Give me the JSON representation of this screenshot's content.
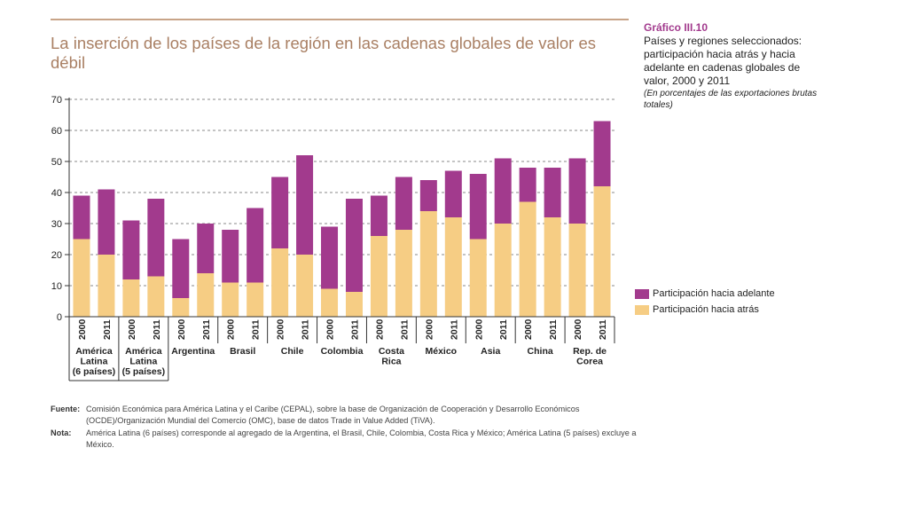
{
  "header": {
    "headline": "La inserción de los países de la región en las cadenas globales de valor es débil"
  },
  "side": {
    "label": "Gráfico III.10",
    "description": "Países y regiones seleccionados: participación hacia atrás y hacia adelante en cadenas globales de valor, 2000 y 2011",
    "note": "(En porcentajes de las exportaciones brutas totales)"
  },
  "colors": {
    "forward": "#a23a8d",
    "backward": "#f6cd84",
    "headline": "#a97f63",
    "grid": "#888888"
  },
  "legend": {
    "forward": "Participación hacia adelante",
    "backward": "Participación hacia atrás"
  },
  "footer": {
    "source_key": "Fuente:",
    "source_text": "Comisión Económica para América Latina y el Caribe (CEPAL), sobre la base de Organización de Cooperación y Desarrollo Económicos (OCDE)/Organización Mundial del Comercio (OMC), base de datos Trade in Value Added (TiVA).",
    "note_key": "Nota:",
    "note_text": "América Latina (6 países) corresponde al agregado de la Argentina, el Brasil, Chile, Colombia, Costa Rica y México; América Latina (5 países) excluye a México."
  },
  "chart_data": {
    "type": "bar",
    "stacked": true,
    "ylim": [
      0,
      70
    ],
    "yticks": [
      0,
      10,
      20,
      30,
      40,
      50,
      60,
      70
    ],
    "grid": "dashed horizontal",
    "legend_position": "right",
    "years": [
      "2000",
      "2011"
    ],
    "groups": [
      {
        "label_lines": [
          "América",
          "Latina",
          "(6 países)"
        ]
      },
      {
        "label_lines": [
          "América",
          "Latina",
          "(5 países)"
        ]
      },
      {
        "label_lines": [
          "Argentina"
        ]
      },
      {
        "label_lines": [
          "Brasil"
        ]
      },
      {
        "label_lines": [
          "Chile"
        ]
      },
      {
        "label_lines": [
          "Colombia"
        ]
      },
      {
        "label_lines": [
          "Costa",
          "Rica"
        ]
      },
      {
        "label_lines": [
          "México"
        ]
      },
      {
        "label_lines": [
          "Asia"
        ]
      },
      {
        "label_lines": [
          "China"
        ]
      },
      {
        "label_lines": [
          "Rep. de",
          "Corea"
        ]
      }
    ],
    "series": [
      {
        "name": "Participación hacia atrás",
        "values": [
          25,
          20,
          12,
          13,
          6,
          14,
          11,
          11,
          22,
          20,
          9,
          8,
          26,
          28,
          34,
          32,
          25,
          30,
          37,
          32,
          30,
          42
        ]
      },
      {
        "name": "Participación hacia adelante",
        "values": [
          14,
          21,
          19,
          25,
          19,
          16,
          17,
          24,
          23,
          32,
          20,
          30,
          13,
          17,
          10,
          15,
          21,
          21,
          11,
          16,
          21,
          21
        ]
      }
    ]
  }
}
